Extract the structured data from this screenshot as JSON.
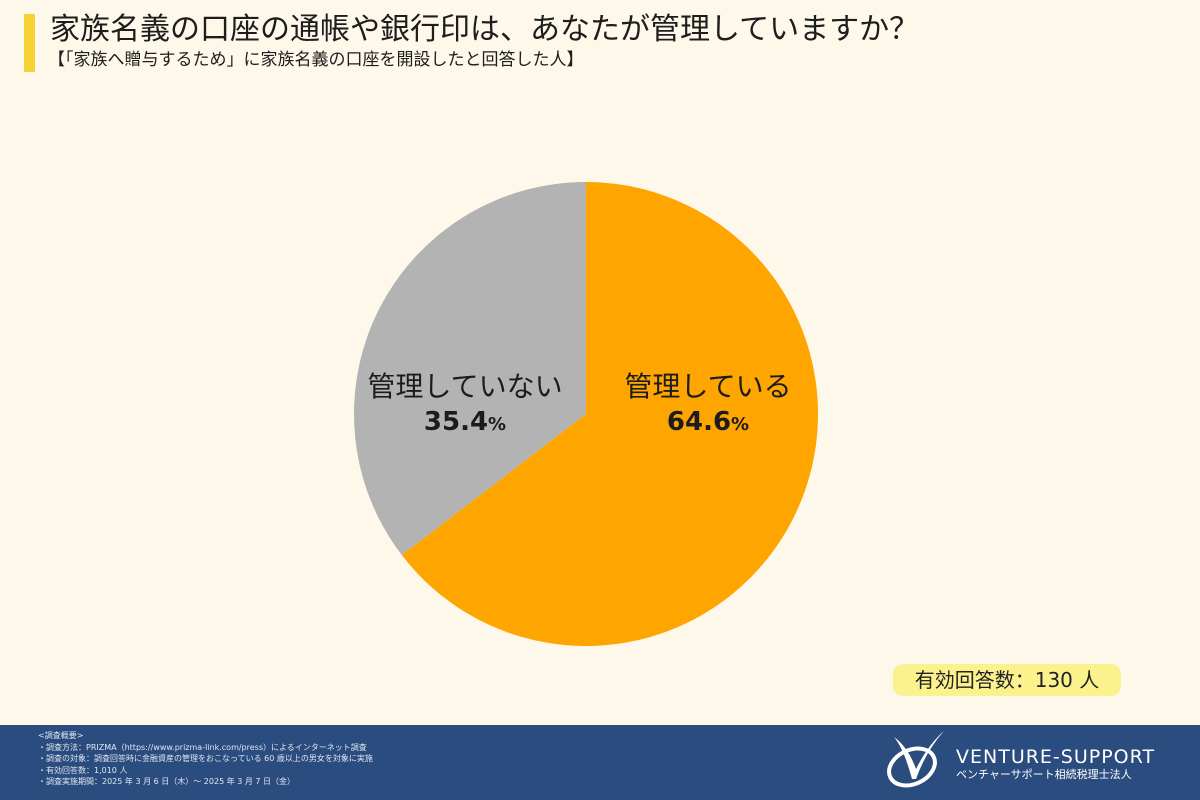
{
  "header": {
    "title": "家族名義の口座の通帳や銀行印は、あなたが管理していますか？",
    "subtitle": "【「家族へ贈与するため」に家族名義の口座を開設したと回答した人】",
    "accent_color": "#f7d233"
  },
  "chart_data": {
    "type": "pie",
    "title": "家族名義の口座の通帳や銀行印は、あなたが管理していますか？",
    "subtitle": "【「家族へ贈与するため」に家族名義の口座を開設したと回答した人】",
    "categories": [
      "管理している",
      "管理していない"
    ],
    "values": [
      64.6,
      35.4
    ],
    "unit": "%",
    "colors": [
      "#ffa500",
      "#b3b3b3"
    ],
    "start_angle": "12 o'clock, clockwise",
    "legend": "none (inline labels)",
    "sample_size_label": "有効回答数：130 人"
  },
  "slices": [
    {
      "label": "管理している",
      "value": "64.6",
      "unit": "%"
    },
    {
      "label": "管理していない",
      "value": "35.4",
      "unit": "%"
    }
  ],
  "respondents": {
    "label": "有効回答数：130 人"
  },
  "footer": {
    "notes": [
      "<調査概要>",
      "・調査方法：PRIZMA（https://www.prizma-link.com/press）によるインターネット調査",
      "・調査の対象：調査回答時に金融資産の管理をおこなっている 60 歳以上の男女を対象に実施",
      "・有効回答数：1,010 人",
      "・調査実施期間：2025 年 3 月 6 日（木）～ 2025 年 3 月 7 日（金）"
    ],
    "brand_name": "VENTURE-SUPPORT",
    "brand_sub": "ベンチャーサポート相続税理士法人",
    "background": "#2b4c7e"
  }
}
